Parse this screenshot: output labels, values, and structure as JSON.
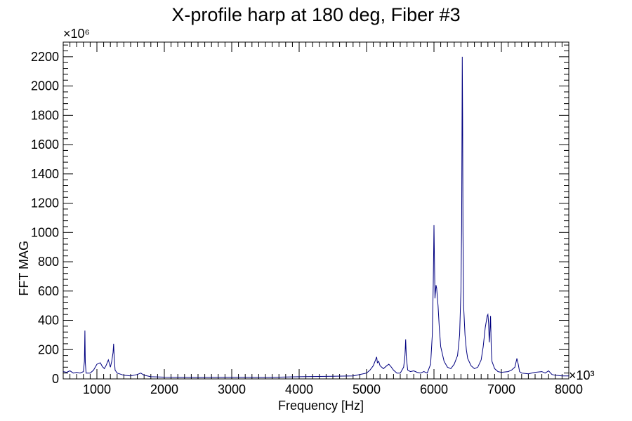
{
  "chart_data": {
    "type": "line",
    "title": "X-profile harp at 180 deg, Fiber #3",
    "xlabel": "Frequency [Hz]",
    "ylabel": "FFT MAG",
    "x_multiplier": "×10³",
    "y_multiplier": "×10⁶",
    "xlim": [
      500,
      8000
    ],
    "ylim": [
      0,
      2300
    ],
    "x_ticks": [
      1000,
      2000,
      3000,
      4000,
      5000,
      6000,
      7000,
      8000
    ],
    "y_ticks": [
      0,
      200,
      400,
      600,
      800,
      1000,
      1200,
      1400,
      1600,
      1800,
      2000,
      2200
    ],
    "grid": false,
    "legend": "none",
    "line_color": "#000080",
    "series": [
      {
        "x": [
          500,
          550,
          600,
          650,
          700,
          750,
          800,
          815,
          822,
          828,
          840,
          900,
          950,
          1000,
          1050,
          1080,
          1110,
          1140,
          1170,
          1200,
          1220,
          1240,
          1248,
          1256,
          1270,
          1300,
          1400,
          1500,
          1600,
          1650,
          1700,
          1800,
          2000,
          2500,
          3000,
          3500,
          4000,
          4500,
          4800,
          4900,
          5000,
          5050,
          5100,
          5150,
          5160,
          5180,
          5200,
          5250,
          5300,
          5330,
          5360,
          5400,
          5450,
          5500,
          5550,
          5570,
          5580,
          5590,
          5610,
          5650,
          5700,
          5750,
          5800,
          5850,
          5900,
          5950,
          5975,
          5990,
          6000,
          6010,
          6015,
          6020,
          6030,
          6040,
          6060,
          6080,
          6100,
          6150,
          6200,
          6250,
          6300,
          6350,
          6380,
          6400,
          6410,
          6420,
          6425,
          6430,
          6440,
          6460,
          6480,
          6500,
          6550,
          6600,
          6650,
          6700,
          6730,
          6760,
          6790,
          6800,
          6810,
          6820,
          6830,
          6840,
          6850,
          6860,
          6900,
          6950,
          7000,
          7100,
          7150,
          7200,
          7230,
          7250,
          7270,
          7300,
          7400,
          7500,
          7600,
          7650,
          7700,
          7750,
          7800,
          7900,
          8000
        ],
        "values": [
          50,
          45,
          55,
          40,
          45,
          40,
          50,
          120,
          330,
          110,
          40,
          40,
          60,
          100,
          110,
          85,
          70,
          95,
          130,
          80,
          120,
          180,
          240,
          150,
          60,
          40,
          25,
          20,
          30,
          40,
          25,
          15,
          12,
          10,
          12,
          10,
          15,
          18,
          20,
          30,
          40,
          60,
          90,
          150,
          110,
          120,
          90,
          70,
          90,
          100,
          85,
          60,
          40,
          40,
          80,
          160,
          270,
          150,
          60,
          50,
          55,
          45,
          40,
          50,
          40,
          100,
          300,
          650,
          1050,
          700,
          550,
          580,
          640,
          620,
          500,
          340,
          220,
          120,
          80,
          70,
          100,
          160,
          300,
          600,
          1050,
          2200,
          1800,
          1000,
          500,
          300,
          200,
          140,
          90,
          70,
          80,
          130,
          220,
          350,
          430,
          440,
          380,
          250,
          330,
          430,
          200,
          120,
          70,
          50,
          45,
          50,
          60,
          80,
          140,
          100,
          50,
          40,
          35,
          45,
          50,
          40,
          55,
          30,
          25,
          20,
          20
        ]
      }
    ]
  }
}
